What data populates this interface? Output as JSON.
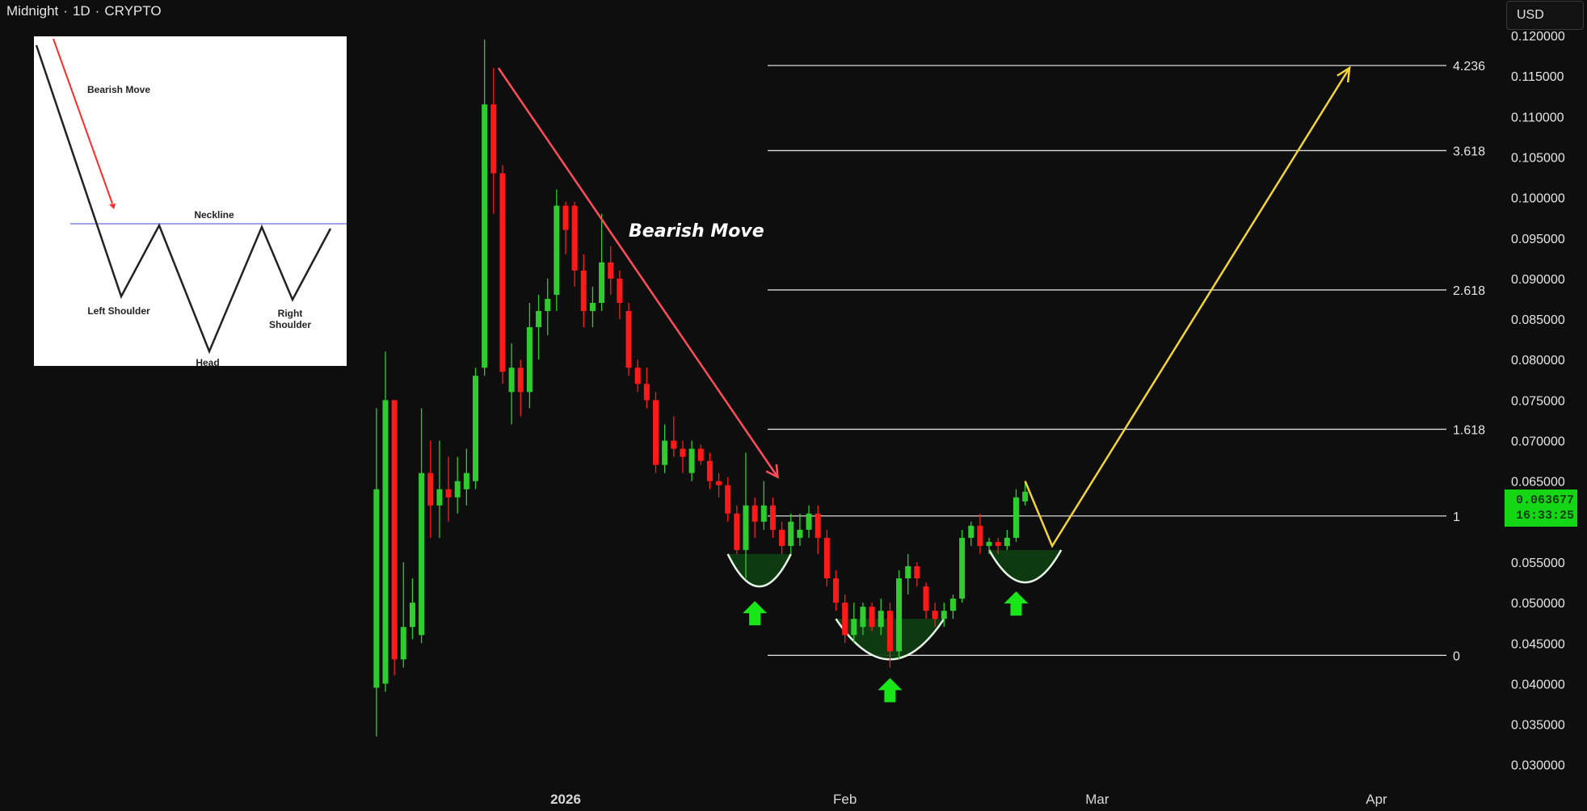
{
  "header": {
    "symbol": "Midnight",
    "interval": "1D",
    "market": "CRYPTO",
    "separator": "·"
  },
  "currency_button": "USD",
  "last_price": {
    "value": "0.063677",
    "countdown": "16:33:25"
  },
  "colors": {
    "background": "#0e0e0e",
    "up_candle": "#2ecc2e",
    "down_candle": "#ff1a1a",
    "bearish_arrow": "#ff4d5a",
    "projection_arrow": "#f2d43a",
    "cup_fill": "#0f3d13",
    "cup_outline": "#e8f5e8",
    "signal_arrow": "#19e619",
    "fib_line": "#d9d9d9",
    "price_tag": "#14d614"
  },
  "annotation_text": "Bearish Move",
  "inset": {
    "labels": {
      "bearish_move": "Bearish Move",
      "neckline": "Neckline",
      "left_shoulder": "Left Shoulder",
      "head": "Head",
      "right_shoulder": "Right Shoulder"
    }
  },
  "chart_data": {
    "type": "candlestick",
    "y_axis": {
      "min": 0.028,
      "max": 0.121,
      "ticks": [
        "0.120000",
        "0.115000",
        "0.110000",
        "0.105000",
        "0.100000",
        "0.095000",
        "0.090000",
        "0.085000",
        "0.080000",
        "0.075000",
        "0.070000",
        "0.065000",
        "0.060000",
        "0.055000",
        "0.050000",
        "0.045000",
        "0.040000",
        "0.035000",
        "0.030000"
      ]
    },
    "x_axis": {
      "ticks": [
        {
          "label": "2026",
          "day": 0
        },
        {
          "label": "Feb",
          "day": 31
        },
        {
          "label": "Mar",
          "day": 59
        },
        {
          "label": "Apr",
          "day": 90
        }
      ]
    },
    "candles": [
      {
        "day": -21,
        "o": 0.0395,
        "h": 0.074,
        "l": 0.0335,
        "c": 0.064
      },
      {
        "day": -20,
        "o": 0.04,
        "h": 0.081,
        "l": 0.039,
        "c": 0.075
      },
      {
        "day": -19,
        "o": 0.075,
        "h": 0.075,
        "l": 0.041,
        "c": 0.043
      },
      {
        "day": -18,
        "o": 0.043,
        "h": 0.055,
        "l": 0.042,
        "c": 0.047
      },
      {
        "day": -17,
        "o": 0.047,
        "h": 0.053,
        "l": 0.0455,
        "c": 0.05
      },
      {
        "day": -16,
        "o": 0.046,
        "h": 0.074,
        "l": 0.045,
        "c": 0.066
      },
      {
        "day": -15,
        "o": 0.066,
        "h": 0.07,
        "l": 0.058,
        "c": 0.062
      },
      {
        "day": -14,
        "o": 0.062,
        "h": 0.07,
        "l": 0.058,
        "c": 0.064
      },
      {
        "day": -13,
        "o": 0.064,
        "h": 0.068,
        "l": 0.06,
        "c": 0.063
      },
      {
        "day": -12,
        "o": 0.063,
        "h": 0.068,
        "l": 0.061,
        "c": 0.065
      },
      {
        "day": -11,
        "o": 0.064,
        "h": 0.069,
        "l": 0.062,
        "c": 0.066
      },
      {
        "day": -10,
        "o": 0.065,
        "h": 0.079,
        "l": 0.064,
        "c": 0.078
      },
      {
        "day": -9,
        "o": 0.079,
        "h": 0.1195,
        "l": 0.078,
        "c": 0.1115
      },
      {
        "day": -8,
        "o": 0.1115,
        "h": 0.116,
        "l": 0.098,
        "c": 0.103
      },
      {
        "day": -7,
        "o": 0.103,
        "h": 0.104,
        "l": 0.077,
        "c": 0.0785
      },
      {
        "day": -6,
        "o": 0.076,
        "h": 0.082,
        "l": 0.072,
        "c": 0.079
      },
      {
        "day": -5,
        "o": 0.079,
        "h": 0.08,
        "l": 0.073,
        "c": 0.076
      },
      {
        "day": -4,
        "o": 0.076,
        "h": 0.087,
        "l": 0.074,
        "c": 0.084
      },
      {
        "day": -3,
        "o": 0.084,
        "h": 0.088,
        "l": 0.08,
        "c": 0.086
      },
      {
        "day": -2,
        "o": 0.086,
        "h": 0.09,
        "l": 0.083,
        "c": 0.0875
      },
      {
        "day": -1,
        "o": 0.088,
        "h": 0.101,
        "l": 0.086,
        "c": 0.099
      },
      {
        "day": 0,
        "o": 0.099,
        "h": 0.0995,
        "l": 0.093,
        "c": 0.096
      },
      {
        "day": 1,
        "o": 0.099,
        "h": 0.0995,
        "l": 0.089,
        "c": 0.091
      },
      {
        "day": 2,
        "o": 0.091,
        "h": 0.093,
        "l": 0.084,
        "c": 0.086
      },
      {
        "day": 3,
        "o": 0.086,
        "h": 0.089,
        "l": 0.084,
        "c": 0.087
      },
      {
        "day": 4,
        "o": 0.087,
        "h": 0.098,
        "l": 0.086,
        "c": 0.092
      },
      {
        "day": 5,
        "o": 0.092,
        "h": 0.094,
        "l": 0.088,
        "c": 0.09
      },
      {
        "day": 6,
        "o": 0.09,
        "h": 0.091,
        "l": 0.085,
        "c": 0.087
      },
      {
        "day": 7,
        "o": 0.086,
        "h": 0.087,
        "l": 0.078,
        "c": 0.079
      },
      {
        "day": 8,
        "o": 0.079,
        "h": 0.08,
        "l": 0.076,
        "c": 0.077
      },
      {
        "day": 9,
        "o": 0.077,
        "h": 0.079,
        "l": 0.074,
        "c": 0.075
      },
      {
        "day": 10,
        "o": 0.075,
        "h": 0.076,
        "l": 0.066,
        "c": 0.067
      },
      {
        "day": 11,
        "o": 0.067,
        "h": 0.072,
        "l": 0.066,
        "c": 0.07
      },
      {
        "day": 12,
        "o": 0.07,
        "h": 0.073,
        "l": 0.068,
        "c": 0.069
      },
      {
        "day": 13,
        "o": 0.069,
        "h": 0.07,
        "l": 0.066,
        "c": 0.068
      },
      {
        "day": 14,
        "o": 0.066,
        "h": 0.07,
        "l": 0.065,
        "c": 0.069
      },
      {
        "day": 15,
        "o": 0.069,
        "h": 0.0695,
        "l": 0.067,
        "c": 0.0675
      },
      {
        "day": 16,
        "o": 0.0675,
        "h": 0.0685,
        "l": 0.064,
        "c": 0.065
      },
      {
        "day": 17,
        "o": 0.065,
        "h": 0.066,
        "l": 0.063,
        "c": 0.0645
      },
      {
        "day": 18,
        "o": 0.0645,
        "h": 0.0655,
        "l": 0.06,
        "c": 0.061
      },
      {
        "day": 19,
        "o": 0.061,
        "h": 0.062,
        "l": 0.056,
        "c": 0.0565
      },
      {
        "day": 20,
        "o": 0.0565,
        "h": 0.0685,
        "l": 0.053,
        "c": 0.062
      },
      {
        "day": 21,
        "o": 0.062,
        "h": 0.063,
        "l": 0.058,
        "c": 0.06
      },
      {
        "day": 22,
        "o": 0.06,
        "h": 0.065,
        "l": 0.059,
        "c": 0.062
      },
      {
        "day": 23,
        "o": 0.062,
        "h": 0.063,
        "l": 0.058,
        "c": 0.059
      },
      {
        "day": 24,
        "o": 0.059,
        "h": 0.06,
        "l": 0.056,
        "c": 0.057
      },
      {
        "day": 25,
        "o": 0.057,
        "h": 0.061,
        "l": 0.056,
        "c": 0.06
      },
      {
        "day": 26,
        "o": 0.058,
        "h": 0.061,
        "l": 0.057,
        "c": 0.059
      },
      {
        "day": 27,
        "o": 0.059,
        "h": 0.062,
        "l": 0.058,
        "c": 0.061
      },
      {
        "day": 28,
        "o": 0.061,
        "h": 0.062,
        "l": 0.056,
        "c": 0.058
      },
      {
        "day": 29,
        "o": 0.058,
        "h": 0.059,
        "l": 0.052,
        "c": 0.053
      },
      {
        "day": 30,
        "o": 0.053,
        "h": 0.054,
        "l": 0.049,
        "c": 0.05
      },
      {
        "day": 31,
        "o": 0.05,
        "h": 0.051,
        "l": 0.045,
        "c": 0.046
      },
      {
        "day": 32,
        "o": 0.046,
        "h": 0.05,
        "l": 0.045,
        "c": 0.048
      },
      {
        "day": 33,
        "o": 0.047,
        "h": 0.05,
        "l": 0.046,
        "c": 0.0495
      },
      {
        "day": 34,
        "o": 0.0495,
        "h": 0.05,
        "l": 0.0465,
        "c": 0.047
      },
      {
        "day": 35,
        "o": 0.047,
        "h": 0.0505,
        "l": 0.046,
        "c": 0.049
      },
      {
        "day": 36,
        "o": 0.049,
        "h": 0.05,
        "l": 0.042,
        "c": 0.044
      },
      {
        "day": 37,
        "o": 0.044,
        "h": 0.054,
        "l": 0.043,
        "c": 0.053
      },
      {
        "day": 38,
        "o": 0.053,
        "h": 0.056,
        "l": 0.051,
        "c": 0.0545
      },
      {
        "day": 39,
        "o": 0.0545,
        "h": 0.055,
        "l": 0.052,
        "c": 0.053
      },
      {
        "day": 40,
        "o": 0.052,
        "h": 0.0525,
        "l": 0.048,
        "c": 0.049
      },
      {
        "day": 41,
        "o": 0.049,
        "h": 0.05,
        "l": 0.047,
        "c": 0.048
      },
      {
        "day": 42,
        "o": 0.048,
        "h": 0.05,
        "l": 0.047,
        "c": 0.049
      },
      {
        "day": 43,
        "o": 0.049,
        "h": 0.051,
        "l": 0.048,
        "c": 0.0505
      },
      {
        "day": 44,
        "o": 0.0505,
        "h": 0.059,
        "l": 0.05,
        "c": 0.058
      },
      {
        "day": 45,
        "o": 0.058,
        "h": 0.06,
        "l": 0.057,
        "c": 0.0595
      },
      {
        "day": 46,
        "o": 0.0595,
        "h": 0.061,
        "l": 0.056,
        "c": 0.057
      },
      {
        "day": 47,
        "o": 0.057,
        "h": 0.058,
        "l": 0.056,
        "c": 0.0575
      },
      {
        "day": 48,
        "o": 0.0575,
        "h": 0.058,
        "l": 0.056,
        "c": 0.057
      },
      {
        "day": 49,
        "o": 0.057,
        "h": 0.059,
        "l": 0.0565,
        "c": 0.058
      },
      {
        "day": 50,
        "o": 0.058,
        "h": 0.064,
        "l": 0.0575,
        "c": 0.063
      },
      {
        "day": 51,
        "o": 0.0625,
        "h": 0.065,
        "l": 0.062,
        "c": 0.0637
      }
    ],
    "fibonacci": [
      {
        "label": "4.236",
        "price": 0.1163
      },
      {
        "label": "3.618",
        "price": 0.1058
      },
      {
        "label": "2.618",
        "price": 0.0886
      },
      {
        "label": "1.618",
        "price": 0.0714
      },
      {
        "label": "1",
        "price": 0.0607
      },
      {
        "label": "0",
        "price": 0.0435
      }
    ],
    "bearish_trendline": {
      "from": {
        "day": -8,
        "price": 0.116
      },
      "to": {
        "day": 23,
        "price": 0.0655
      }
    },
    "projection_path": [
      {
        "day": 51,
        "price": 0.065
      },
      {
        "day": 54,
        "price": 0.057
      },
      {
        "day": 87,
        "price": 0.116
      }
    ],
    "cups": [
      {
        "start_day": 18,
        "end_day": 25,
        "top": 0.056,
        "bottom": 0.052
      },
      {
        "start_day": 30,
        "end_day": 42,
        "top": 0.048,
        "bottom": 0.043
      },
      {
        "start_day": 47,
        "end_day": 55,
        "top": 0.0565,
        "bottom": 0.0525
      }
    ],
    "signal_arrows": [
      {
        "day": 21,
        "price": 0.0485
      },
      {
        "day": 36,
        "price": 0.039
      },
      {
        "day": 50,
        "price": 0.0497
      }
    ]
  }
}
